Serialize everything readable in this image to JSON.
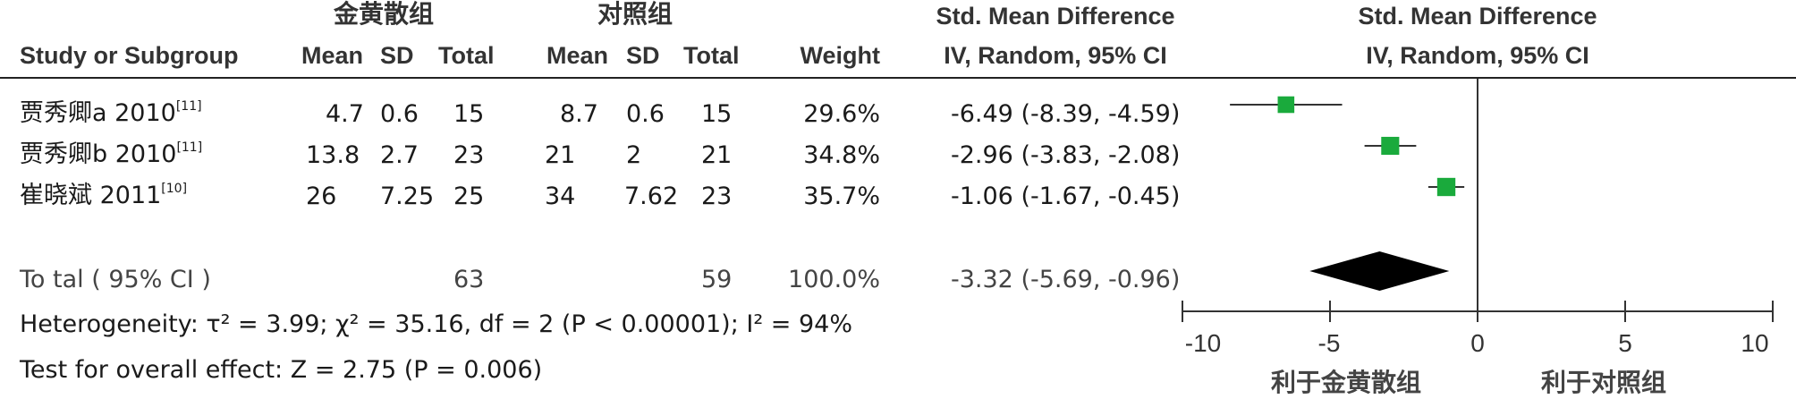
{
  "header": {
    "group1": "金黄散组",
    "group2": "对照组",
    "col_study": "Study or Subgroup",
    "col_mean": "Mean",
    "col_sd": "SD",
    "col_total": "Total",
    "col_weight": "Weight",
    "effect_title": "Std. Mean Difference",
    "effect_method": "IV, Random, 95% CI",
    "plot_title": "Std. Mean Difference",
    "plot_method": "IV, Random, 95% CI"
  },
  "studies": [
    {
      "name": "贾秀卿a 2010",
      "ref": "[11]",
      "exp_mean": "4.7",
      "exp_sd": "0.6",
      "exp_total": "15",
      "ctl_mean": "8.7",
      "ctl_sd": "0.6",
      "ctl_total": "15",
      "weight": "29.6%",
      "ci_text": "-6.49 (-8.39, -4.59)"
    },
    {
      "name": "贾秀卿b 2010",
      "ref": "[11]",
      "exp_mean": "13.8",
      "exp_sd": "2.7",
      "exp_total": "23",
      "ctl_mean": "21",
      "ctl_sd": "2",
      "ctl_total": "21",
      "weight": "34.8%",
      "ci_text": "-2.96 (-3.83, -2.08)"
    },
    {
      "name": "崔晓斌 2011",
      "ref": "[10]",
      "exp_mean": "26",
      "exp_sd": "7.25",
      "exp_total": "25",
      "ctl_mean": "34",
      "ctl_sd": "7.62",
      "ctl_total": "23",
      "weight": "35.7%",
      "ci_text": "-1.06 (-1.67, -0.45)"
    }
  ],
  "total": {
    "label": "To tal ( 95% CI )",
    "exp_total": "63",
    "ctl_total": "59",
    "weight": "100.0%",
    "ci_text": "-3.32 (-5.69, -0.96)"
  },
  "footer": {
    "heterogeneity": "Heterogeneity: τ² = 3.99; χ² = 35.16, df = 2 (P < 0.00001); I² = 94%",
    "overall": "Test for overall effect: Z = 2.75 (P = 0.006)"
  },
  "favours": {
    "left": "利于金黄散组",
    "right": "利于对照组"
  },
  "colors": {
    "square": "#1aaa3c",
    "diamond": "#000000",
    "line": "#333333"
  },
  "chart_data": {
    "type": "forest",
    "xlim": [
      -10,
      10
    ],
    "ticks": [
      -10,
      -5,
      0,
      5,
      10
    ],
    "tick_labels": [
      "-10",
      "-5",
      "0",
      "5",
      "10"
    ],
    "points": [
      {
        "study": "贾秀卿a 2010",
        "estimate": -6.49,
        "lower": -8.39,
        "upper": -4.59,
        "weight": 29.6
      },
      {
        "study": "贾秀卿b 2010",
        "estimate": -2.96,
        "lower": -3.83,
        "upper": -2.08,
        "weight": 34.8
      },
      {
        "study": "崔晓斌 2011",
        "estimate": -1.06,
        "lower": -1.67,
        "upper": -0.45,
        "weight": 35.7
      }
    ],
    "summary": {
      "estimate": -3.32,
      "lower": -5.69,
      "upper": -0.96
    }
  }
}
